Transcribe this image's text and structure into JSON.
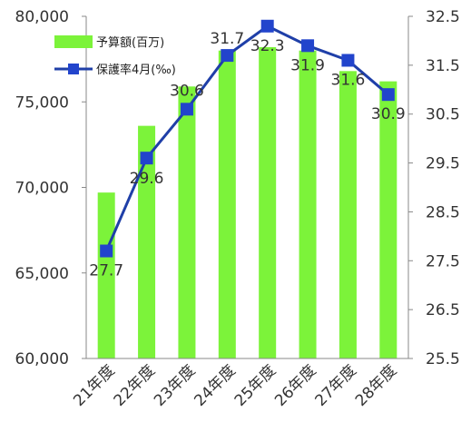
{
  "chart_data": {
    "type": "bar+line",
    "categories": [
      "21年度",
      "22年度",
      "23年度",
      "24年度",
      "25年度",
      "26年度",
      "27年度",
      "28年度"
    ],
    "series": [
      {
        "name": "予算額(百万)",
        "type": "bar",
        "axis": "left",
        "values": [
          69700,
          73600,
          75900,
          78000,
          78200,
          78000,
          76800,
          76200
        ]
      },
      {
        "name": "保護率4月(‰)",
        "type": "line",
        "axis": "right",
        "values": [
          27.7,
          29.6,
          30.6,
          31.7,
          32.3,
          31.9,
          31.6,
          30.9
        ],
        "labels": [
          "27.7",
          "29.6",
          "30.6",
          "31.7",
          "32.3",
          "31.9",
          "31.6",
          "30.9"
        ]
      }
    ],
    "y_left": {
      "min": 60000,
      "max": 80000,
      "ticks": [
        60000,
        65000,
        70000,
        75000,
        80000
      ],
      "tick_labels": [
        "60,000",
        "65,000",
        "70,000",
        "75,000",
        "80,000"
      ]
    },
    "y_right": {
      "min": 25.5,
      "max": 32.5,
      "ticks": [
        25.5,
        26.5,
        27.5,
        28.5,
        29.5,
        30.5,
        31.5,
        32.5
      ],
      "tick_labels": [
        "25.5",
        "26.5",
        "27.5",
        "28.5",
        "29.5",
        "30.5",
        "31.5",
        "32.5"
      ]
    },
    "legend_position": "top-left",
    "grid": false,
    "colors": {
      "bar": "#7CF33A",
      "line": "#1F3FA8",
      "marker": "#2244CC"
    }
  }
}
